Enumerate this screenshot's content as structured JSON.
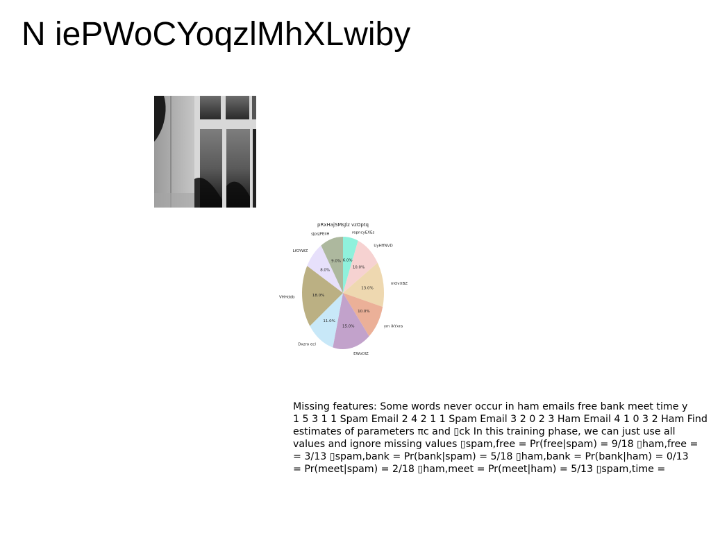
{
  "title": "N iePWoCYoqzlMhXLwiby",
  "photo": {
    "description_icon": "grayscale-window-photo"
  },
  "chart_data": {
    "type": "pie",
    "title": "pRxHajSMsJlz vzOptq",
    "start_angle_deg": 90,
    "direction": "clockwise",
    "slices": [
      {
        "label": "repncyEXEs",
        "value": 6.0,
        "pct_label": "6.0%",
        "color": "#8ff1dc"
      },
      {
        "label": "UyHffNVD",
        "value": 10.0,
        "pct_label": "10.0%",
        "color": "#f6d2d1"
      },
      {
        "label": "mOvXBZ",
        "value": 13.0,
        "pct_label": "13.0%",
        "color": "#eed8b0"
      },
      {
        "label": "ym ikYxra",
        "value": 10.0,
        "pct_label": "10.0%",
        "color": "#ebb098"
      },
      {
        "label": "EWoOlZ",
        "value": 15.0,
        "pct_label": "15.0%",
        "color": "#c2a2cb"
      },
      {
        "label": "Dxzro ecl",
        "value": 11.0,
        "pct_label": "11.0%",
        "color": "#c8e8f8"
      },
      {
        "label": "VHHddb",
        "value": 18.0,
        "pct_label": "18.0%",
        "color": "#bbb083"
      },
      {
        "label": "LfGYWZ",
        "value": 8.0,
        "pct_label": "8.0%",
        "color": "#e7e0fb"
      },
      {
        "label": "sJpsJPEiiH",
        "value": 9.0,
        "pct_label": "9.0%",
        "color": "#adb89e"
      }
    ]
  },
  "text_lines": [
    "Missing features: Some words never occur in ham emails free bank meet time y",
    "1 5 3 1 1 Spam Email 2 4 2 1 1 Spam Email 3 2 0 2 3 Ham Email 4 1 0 3 2 Ham Find",
    "estimates of parameters πc and ▯ck In this training phase, we can just use all",
    "values and ignore missing values ▯spam,free = Pr(free|spam) = 9/18 ▯ham,free =",
    "= 3/13 ▯spam,bank = Pr(bank|spam) = 5/18 ▯ham,bank = Pr(bank|ham) = 0/13",
    "= Pr(meet|spam) = 2/18 ▯ham,meet = Pr(meet|ham) = 5/13 ▯spam,time ="
  ]
}
